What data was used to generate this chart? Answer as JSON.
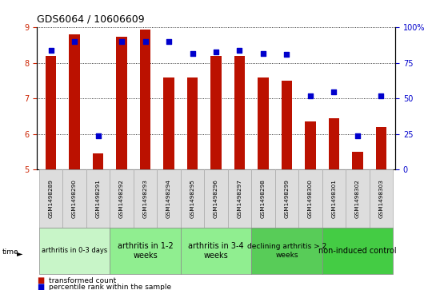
{
  "title": "GDS6064 / 10606609",
  "samples": [
    "GSM1498289",
    "GSM1498290",
    "GSM1498291",
    "GSM1498292",
    "GSM1498293",
    "GSM1498294",
    "GSM1498295",
    "GSM1498296",
    "GSM1498297",
    "GSM1498298",
    "GSM1498299",
    "GSM1498300",
    "GSM1498301",
    "GSM1498302",
    "GSM1498303"
  ],
  "transformed_count": [
    8.2,
    8.8,
    5.45,
    8.75,
    8.95,
    7.6,
    7.6,
    8.2,
    8.2,
    7.6,
    7.5,
    6.35,
    6.45,
    5.5,
    6.2
  ],
  "percentile_rank": [
    84,
    90,
    24,
    90,
    90,
    90,
    82,
    83,
    84,
    82,
    81,
    52,
    55,
    24,
    52
  ],
  "ylim_left": [
    5,
    9
  ],
  "ylim_right": [
    0,
    100
  ],
  "yticks_left": [
    5,
    6,
    7,
    8,
    9
  ],
  "yticks_right": [
    0,
    25,
    50,
    75,
    100
  ],
  "groups": [
    {
      "label": "arthritis in 0-3 days",
      "start": 0,
      "end": 3,
      "color": "#c8f5c8",
      "fontsize": 6.0
    },
    {
      "label": "arthritis in 1-2\nweeks",
      "start": 3,
      "end": 6,
      "color": "#90ee90",
      "fontsize": 7.0
    },
    {
      "label": "arthritis in 3-4\nweeks",
      "start": 6,
      "end": 9,
      "color": "#90ee90",
      "fontsize": 7.0
    },
    {
      "label": "declining arthritis > 2\nweeks",
      "start": 9,
      "end": 12,
      "color": "#58cc58",
      "fontsize": 6.5
    },
    {
      "label": "non-induced control",
      "start": 12,
      "end": 15,
      "color": "#44cc44",
      "fontsize": 7.0
    }
  ],
  "bar_color": "#bb1100",
  "dot_color": "#0000cc",
  "label_color_left": "#cc2200",
  "label_color_right": "#0000cc"
}
